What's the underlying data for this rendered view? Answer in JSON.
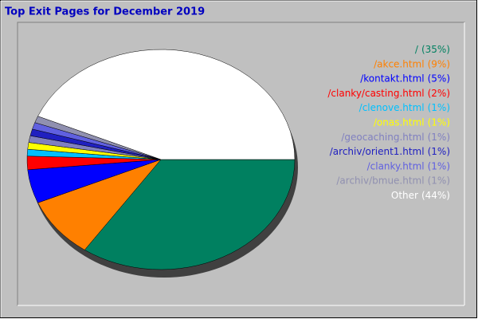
{
  "chart_data": {
    "type": "pie",
    "title": "Top Exit Pages for December 2019",
    "categories": [
      "/",
      "/akce.html",
      "/kontakt.html",
      "/clanky/casting.html",
      "/clenove.html",
      "/onas.html",
      "/geocaching.html",
      "/archiv/orient1.html",
      "/clanky.html",
      "/archiv/bmue.html",
      "Other"
    ],
    "values": [
      35,
      9,
      5,
      2,
      1,
      1,
      1,
      1,
      1,
      1,
      44
    ],
    "value_labels": [
      "(35%)",
      "(9%)",
      "(5%)",
      "(2%)",
      "(1%)",
      "(1%)",
      "(1%)",
      "(1%)",
      "(1%)",
      "(1%)",
      "(44%)"
    ],
    "colors": [
      "#008060",
      "#ff8000",
      "#0000ff",
      "#ff0000",
      "#00c0ff",
      "#ffff00",
      "#8080c0",
      "#2020c0",
      "#6060e0",
      "#9090b0",
      "#ffffff"
    ],
    "legend": "right"
  }
}
